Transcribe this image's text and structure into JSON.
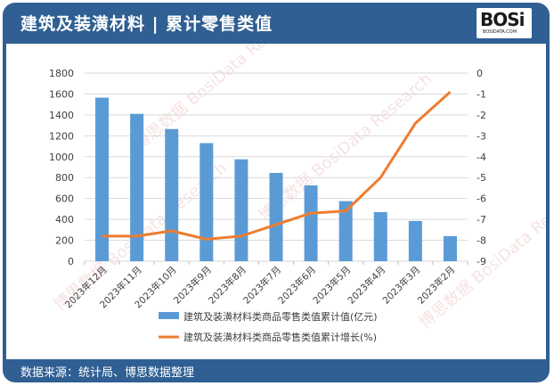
{
  "header": {
    "title": "建筑及装潢材料 | 累计零售类值",
    "logo_text": "BOSi",
    "logo_sub": "BOSIDATA.COM"
  },
  "footer": {
    "source": "数据来源：统计局、博思数据整理"
  },
  "watermark": "博思数据 BosiData Research",
  "colors": {
    "frame": "#2f5f93",
    "bar": "#5b9bd5",
    "line": "#ed7d31",
    "grid": "#d9d9d9"
  },
  "chart_data": {
    "type": "bar+line",
    "title": "建筑及装潢材料 | 累计零售类值",
    "categories": [
      "2023年12月",
      "2023年11月",
      "2023年10月",
      "2023年9月",
      "2023年8月",
      "2023年7月",
      "2023年6月",
      "2023年5月",
      "2023年4月",
      "2023年3月",
      "2023年2月"
    ],
    "series": [
      {
        "name": "建筑及装潢材料类商品零售类值累计值(亿元)",
        "type": "bar",
        "axis": "left",
        "values": [
          1565,
          1410,
          1265,
          1130,
          975,
          845,
          725,
          575,
          470,
          385,
          240
        ]
      },
      {
        "name": "建筑及装潢材料类商品零售类值累计增长(%)",
        "type": "line",
        "axis": "right",
        "values": [
          -7.8,
          -7.8,
          -7.55,
          -7.95,
          -7.8,
          -7.25,
          -6.7,
          -6.6,
          -5.0,
          -2.4,
          -0.9
        ]
      }
    ],
    "left_axis": {
      "ylim": [
        0,
        1800
      ],
      "ticks": [
        "0",
        "200",
        "400",
        "600",
        "800",
        "1000",
        "1200",
        "1400",
        "1600",
        "1800"
      ]
    },
    "right_axis": {
      "ylim": [
        -9,
        0
      ],
      "ticks": [
        "0",
        "-1",
        "-2",
        "-3",
        "-4",
        "-5",
        "-6",
        "-7",
        "-8",
        "-9"
      ]
    },
    "grid": true,
    "legend_position": "bottom"
  }
}
